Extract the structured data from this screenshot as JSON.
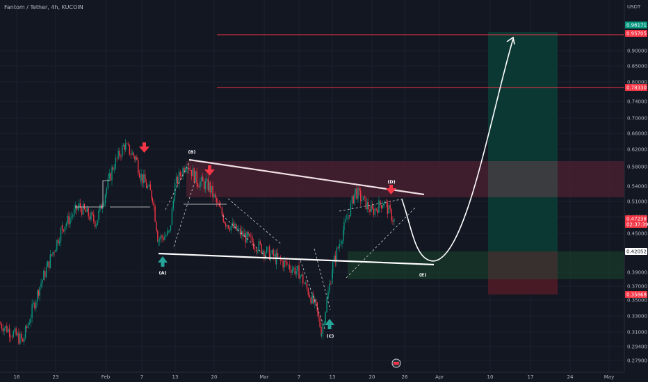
{
  "header": {
    "symbol_title": "Fantom / Tether, 4h, KUCOIN"
  },
  "axis": {
    "currency": "USDT",
    "y_ticks": [
      "0.90000",
      "0.85000",
      "0.80000",
      "0.74000",
      "0.70000",
      "0.66000",
      "0.62000",
      "0.58000",
      "0.54000",
      "0.51000",
      "0.48000",
      "0.45000",
      "0.39000",
      "0.37000",
      "0.35000",
      "0.33000",
      "0.31000",
      "0.29400",
      "0.27900"
    ],
    "x_ticks": [
      "16",
      "23",
      "Feb",
      "7",
      "13",
      "20",
      "Mar",
      "7",
      "13",
      "20",
      "26",
      "Apr",
      "10",
      "17",
      "24",
      "May"
    ]
  },
  "price_badges": [
    {
      "label": "0.96171",
      "color": "#089981"
    },
    {
      "label": "0.95705",
      "color": "#f23645"
    },
    {
      "label": "0.78330",
      "color": "#f23645"
    },
    {
      "label": "0.47238",
      "sub": "02:37:39",
      "color": "#f23645"
    },
    {
      "label": "0.42052",
      "color": "#ffffff"
    },
    {
      "label": "0.35868",
      "color": "#f23645"
    }
  ],
  "wave_labels": [
    "(A)",
    "(B)",
    "(C)",
    "(D)",
    "(E)"
  ],
  "chart_data": {
    "type": "candlestick",
    "title": "Fantom / Tether, 4h, KUCOIN",
    "timeframe": "4h",
    "exchange": "KUCOIN",
    "y_unit": "USDT",
    "ylim": [
      0.275,
      1.0
    ],
    "y_scale": "log",
    "price_path": [
      [
        "Jan 13",
        0.32
      ],
      [
        "Jan 17",
        0.3
      ],
      [
        "Jan 20",
        0.37
      ],
      [
        "Jan 24",
        0.46
      ],
      [
        "Jan 27",
        0.5
      ],
      [
        "Jan 30",
        0.47
      ],
      [
        "Feb 2",
        0.58
      ],
      [
        "Feb 4",
        0.63
      ],
      [
        "Feb 6",
        0.6
      ],
      [
        "Feb 7",
        0.56
      ],
      [
        "Feb 9",
        0.52
      ],
      [
        "Feb 10",
        0.44
      ],
      [
        "Feb 12",
        0.45
      ],
      [
        "Feb 13",
        0.54
      ],
      [
        "Feb 15",
        0.59
      ],
      [
        "Feb 17",
        0.55
      ],
      [
        "Feb 19",
        0.54
      ],
      [
        "Feb 22",
        0.47
      ],
      [
        "Feb 26",
        0.44
      ],
      [
        "Mar 3",
        0.41
      ],
      [
        "Mar 7",
        0.39
      ],
      [
        "Mar 10",
        0.34
      ],
      [
        "Mar 11",
        0.31
      ],
      [
        "Mar 13",
        0.4
      ],
      [
        "Mar 15",
        0.46
      ],
      [
        "Mar 17",
        0.53
      ],
      [
        "Mar 20",
        0.49
      ],
      [
        "Mar 22",
        0.51
      ],
      [
        "Mar 24",
        0.47
      ]
    ],
    "horizontal_levels": [
      0.95705,
      0.7833
    ],
    "position_zones": [
      {
        "kind": "target",
        "from": 0.42052,
        "to": 0.96171
      },
      {
        "kind": "stop",
        "from": 0.35868,
        "to": 0.42052
      }
    ],
    "supply_zone": [
      0.52,
      0.585
    ],
    "wave_points": [
      {
        "label": "(A)",
        "date": "Feb 10",
        "price": 0.42
      },
      {
        "label": "(B)",
        "date": "Feb 14",
        "price": 0.6
      },
      {
        "label": "(C)",
        "date": "Mar 12",
        "price": 0.31
      },
      {
        "label": "(D)",
        "date": "Mar 23",
        "price": 0.52
      },
      {
        "label": "(E)",
        "date": "Mar 29",
        "price": 0.4
      }
    ],
    "annotations": [
      "down arrows at Feb 7, Feb 17, Mar 23",
      "up arrows at (A) and (C)",
      "projected path to 0.957 in mid April"
    ]
  },
  "colors": {
    "background": "#131722",
    "candle_up": "#089981",
    "candle_down": "#f23645",
    "target_zone": "#0c3a36",
    "stop_zone": "#4a1a27",
    "supply_zone": "#4a1e2c",
    "level_line": "#f23645",
    "trendline": "#ffffff"
  }
}
